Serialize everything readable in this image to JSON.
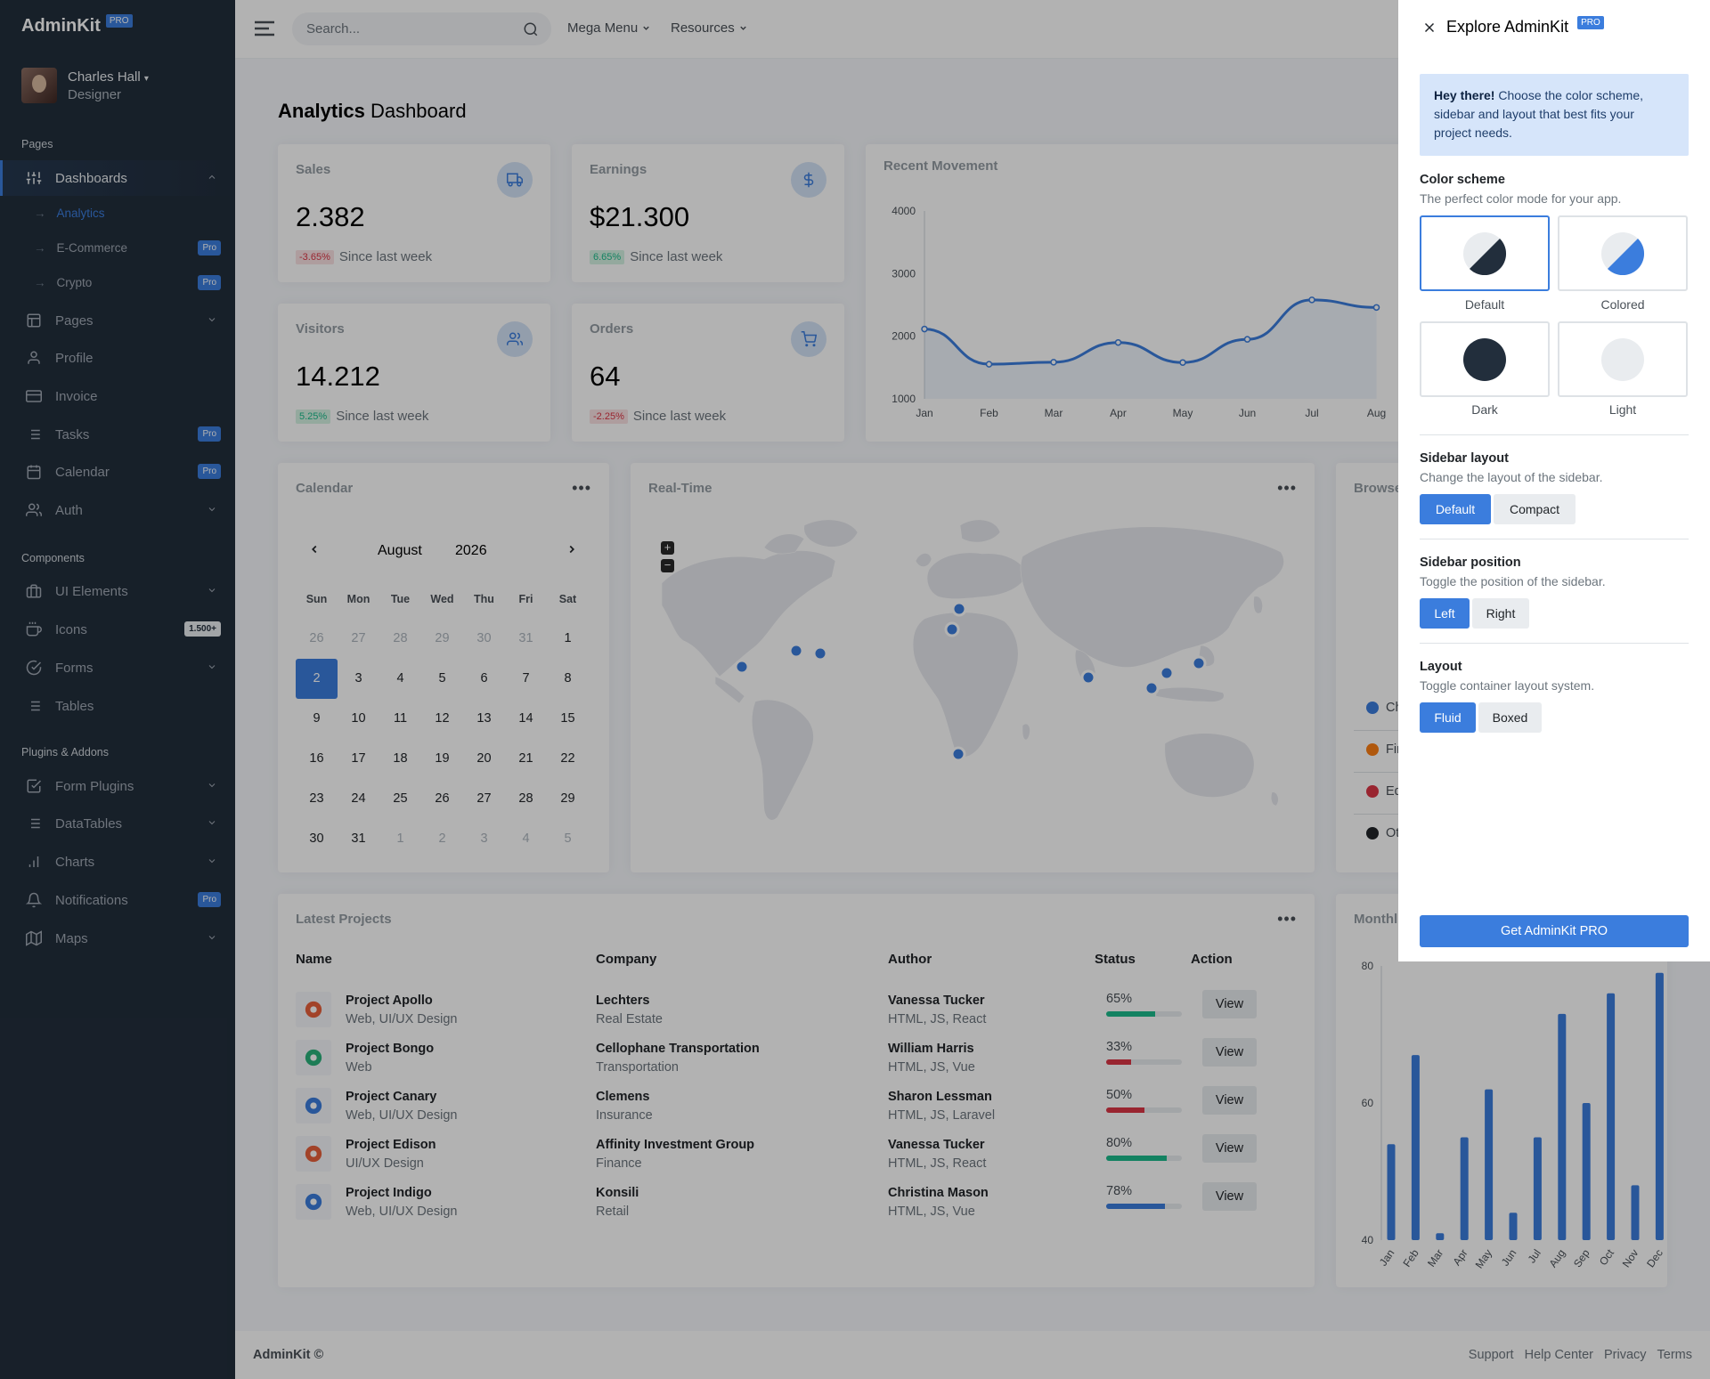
{
  "brand": {
    "name": "AdminKit",
    "badge": "PRO"
  },
  "user": {
    "name": "Charles Hall",
    "role": "Designer"
  },
  "sidebar": {
    "sections": [
      "Pages",
      "Components",
      "Plugins & Addons"
    ],
    "items": [
      {
        "label": "Dashboards",
        "icon": "sliders-icon"
      },
      {
        "label": "Pages",
        "icon": "layout-icon"
      },
      {
        "label": "Profile",
        "icon": "user-icon"
      },
      {
        "label": "Invoice",
        "icon": "credit-card-icon"
      },
      {
        "label": "Tasks",
        "icon": "list-icon",
        "badge": "Pro"
      },
      {
        "label": "Calendar",
        "icon": "calendar-icon",
        "badge": "Pro"
      },
      {
        "label": "Auth",
        "icon": "users-icon"
      },
      {
        "label": "UI Elements",
        "icon": "briefcase-icon"
      },
      {
        "label": "Icons",
        "icon": "coffee-icon",
        "badge": "1.500+"
      },
      {
        "label": "Forms",
        "icon": "check-circle-icon"
      },
      {
        "label": "Tables",
        "icon": "list-icon"
      },
      {
        "label": "Form Plugins",
        "icon": "check-square-icon"
      },
      {
        "label": "DataTables",
        "icon": "list-icon"
      },
      {
        "label": "Charts",
        "icon": "bar-chart-icon"
      },
      {
        "label": "Notifications",
        "icon": "bell-icon",
        "badge": "Pro"
      },
      {
        "label": "Maps",
        "icon": "map-icon"
      }
    ],
    "sub": [
      {
        "label": "Analytics"
      },
      {
        "label": "E-Commerce",
        "badge": "Pro"
      },
      {
        "label": "Crypto",
        "badge": "Pro"
      }
    ]
  },
  "topbar": {
    "search_placeholder": "Search...",
    "menu1": "Mega Menu",
    "menu2": "Resources"
  },
  "page": {
    "title_bold": "Analytics",
    "title_rest": " Dashboard"
  },
  "stats": [
    {
      "title": "Sales",
      "value": "2.382",
      "change": "-3.65%",
      "trend": "down",
      "note": "Since last week",
      "icon": "truck-icon"
    },
    {
      "title": "Earnings",
      "value": "$21.300",
      "change": "6.65%",
      "trend": "up",
      "note": "Since last week",
      "icon": "dollar-icon"
    },
    {
      "title": "Visitors",
      "value": "14.212",
      "change": "5.25%",
      "trend": "up",
      "note": "Since last week",
      "icon": "users-icon"
    },
    {
      "title": "Orders",
      "value": "64",
      "change": "-2.25%",
      "trend": "down",
      "note": "Since last week",
      "icon": "shopping-cart-icon"
    }
  ],
  "movement": {
    "title": "Recent Movement",
    "chart_data": {
      "type": "area",
      "categories": [
        "Jan",
        "Feb",
        "Mar",
        "Apr",
        "May",
        "Jun",
        "Jul",
        "Aug"
      ],
      "values": [
        2115,
        1553,
        1585,
        1900,
        1580,
        1950,
        2580,
        2460
      ],
      "ylim": [
        1000,
        4000
      ],
      "yticks": [
        1000,
        2000,
        3000,
        4000
      ],
      "color": "#3b7ddd"
    }
  },
  "calendar": {
    "title": "Calendar",
    "month": "August",
    "year": "2026",
    "weekdays": [
      "Sun",
      "Mon",
      "Tue",
      "Wed",
      "Thu",
      "Fri",
      "Sat"
    ],
    "weeks": [
      [
        "26",
        "27",
        "28",
        "29",
        "30",
        "31",
        "1"
      ],
      [
        "2",
        "3",
        "4",
        "5",
        "6",
        "7",
        "8"
      ],
      [
        "9",
        "10",
        "11",
        "12",
        "13",
        "14",
        "15"
      ],
      [
        "16",
        "17",
        "18",
        "19",
        "20",
        "21",
        "22"
      ],
      [
        "23",
        "24",
        "25",
        "26",
        "27",
        "28",
        "29"
      ],
      [
        "30",
        "31",
        "1",
        "2",
        "3",
        "4",
        "5"
      ]
    ],
    "selected": "2"
  },
  "realtime": {
    "title": "Real-Time",
    "zoom_in": "+",
    "zoom_out": "−"
  },
  "browser": {
    "title": "Browse",
    "legend": [
      {
        "label": "Ch",
        "color": "#3b7ddd"
      },
      {
        "label": "Fir",
        "color": "#fd7e14"
      },
      {
        "label": "Ed",
        "color": "#dc3545"
      },
      {
        "label": "Ot",
        "color": "#212529"
      }
    ]
  },
  "projects": {
    "title": "Latest Projects",
    "headers": [
      "Name",
      "Company",
      "Author",
      "Status",
      "Action"
    ],
    "rows": [
      {
        "name": "Project Apollo",
        "type": "Web, UI/UX Design",
        "company": "Lechters",
        "industry": "Real Estate",
        "author": "Vanessa Tucker",
        "stack": "HTML, JS, React",
        "pct": "65%",
        "progress": 0.65,
        "color": "#1cbb8c",
        "action": "View",
        "icon": "apollo-logo-icon"
      },
      {
        "name": "Project Bongo",
        "type": "Web",
        "company": "Cellophane Transportation",
        "industry": "Transportation",
        "author": "William Harris",
        "stack": "HTML, JS, Vue",
        "pct": "33%",
        "progress": 0.33,
        "color": "#dc3545",
        "action": "View",
        "icon": "bongo-logo-icon"
      },
      {
        "name": "Project Canary",
        "type": "Web, UI/UX Design",
        "company": "Clemens",
        "industry": "Insurance",
        "author": "Sharon Lessman",
        "stack": "HTML, JS, Laravel",
        "pct": "50%",
        "progress": 0.5,
        "color": "#dc3545",
        "action": "View",
        "icon": "canary-logo-icon"
      },
      {
        "name": "Project Edison",
        "type": "UI/UX Design",
        "company": "Affinity Investment Group",
        "industry": "Finance",
        "author": "Vanessa Tucker",
        "stack": "HTML, JS, React",
        "pct": "80%",
        "progress": 0.8,
        "color": "#1cbb8c",
        "action": "View",
        "icon": "edison-logo-icon"
      },
      {
        "name": "Project Indigo",
        "type": "Web, UI/UX Design",
        "company": "Konsili",
        "industry": "Retail",
        "author": "Christina Mason",
        "stack": "HTML, JS, Vue",
        "pct": "78%",
        "progress": 0.78,
        "color": "#3b7ddd",
        "action": "View",
        "icon": "indigo-logo-icon"
      }
    ]
  },
  "monthly": {
    "title": "Monthl",
    "chart_data": {
      "type": "bar",
      "categories": [
        "Jan",
        "Feb",
        "Mar",
        "Apr",
        "May",
        "Jun",
        "Jul",
        "Aug",
        "Sep",
        "Oct",
        "Nov",
        "Dec"
      ],
      "values": [
        54,
        67,
        41,
        55,
        62,
        44,
        55,
        73,
        60,
        76,
        48,
        79
      ],
      "ylim": [
        40,
        80
      ],
      "yticks": [
        40,
        60,
        80
      ],
      "color": "#3b7ddd"
    }
  },
  "settings": {
    "title": "Explore AdminKit",
    "badge": "PRO",
    "alert_bold": "Hey there!",
    "alert_text": " Choose the color scheme, sidebar and layout that best fits your project needs.",
    "scheme_title": "Color scheme",
    "scheme_sub": "The perfect color mode for your app.",
    "schemes": [
      "Default",
      "Colored",
      "Dark",
      "Light"
    ],
    "sidebar_layout_title": "Sidebar layout",
    "sidebar_layout_sub": "Change the layout of the sidebar.",
    "sidebar_layout_opts": [
      "Default",
      "Compact"
    ],
    "sidebar_pos_title": "Sidebar position",
    "sidebar_pos_sub": "Toggle the position of the sidebar.",
    "sidebar_pos_opts": [
      "Left",
      "Right"
    ],
    "layout_title": "Layout",
    "layout_sub": "Toggle container layout system.",
    "layout_opts": [
      "Fluid",
      "Boxed"
    ],
    "cta": "Get AdminKit PRO"
  },
  "footer": {
    "left": "AdminKit ©",
    "links": [
      "Support",
      "Help Center",
      "Privacy",
      "Terms"
    ]
  }
}
